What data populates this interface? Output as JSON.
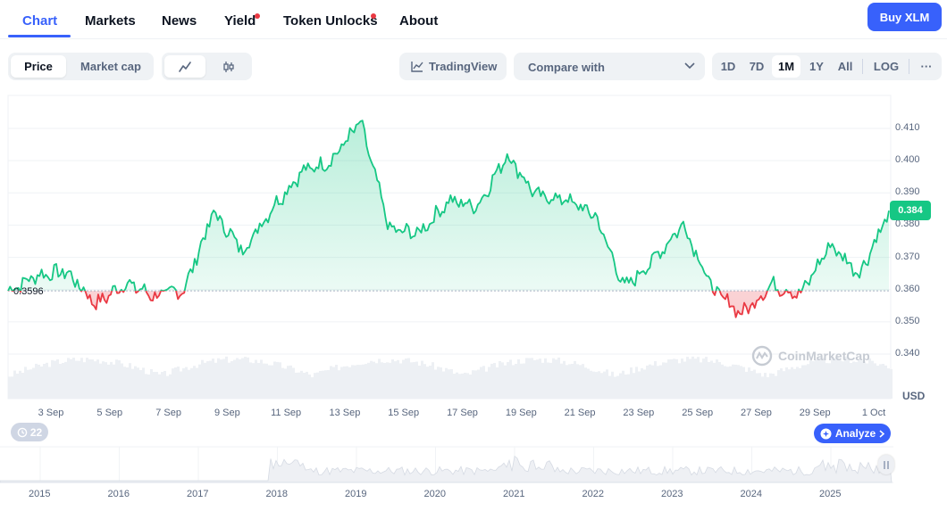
{
  "nav": {
    "tabs": [
      {
        "label": "Chart",
        "active": true
      },
      {
        "label": "Markets"
      },
      {
        "label": "News"
      },
      {
        "label": "Yield",
        "dot": true
      },
      {
        "label": "Token Unlocks",
        "dot": true
      },
      {
        "label": "About"
      }
    ],
    "buy_label": "Buy XLM"
  },
  "toolbar": {
    "metric_tabs": [
      "Price",
      "Market cap"
    ],
    "selected_metric": "Price",
    "chart_type_icons": [
      "line-chart-icon",
      "candlestick-icon"
    ],
    "tradingview_label": "TradingView",
    "compare_label": "Compare with",
    "ranges": [
      "1D",
      "7D",
      "1M",
      "1Y",
      "All"
    ],
    "selected_range": "1M",
    "log_label": "LOG",
    "more_label": "···"
  },
  "chart": {
    "current_price": "0.384",
    "open_price_label": "0.3596",
    "currency": "USD",
    "watermark": "CoinMarketCap",
    "indicator_count": "22",
    "analyze_label": "Analyze",
    "y_ticks": [
      "0.410",
      "0.400",
      "0.390",
      "0.380",
      "0.370",
      "0.360",
      "0.350",
      "0.340"
    ],
    "x_ticks": [
      "3 Sep",
      "5 Sep",
      "7 Sep",
      "9 Sep",
      "11 Sep",
      "13 Sep",
      "15 Sep",
      "17 Sep",
      "19 Sep",
      "21 Sep",
      "23 Sep",
      "25 Sep",
      "27 Sep",
      "29 Sep",
      "1 Oct"
    ],
    "navigator_years": [
      "2015",
      "2016",
      "2017",
      "2018",
      "2019",
      "2020",
      "2021",
      "2022",
      "2023",
      "2024",
      "2025"
    ],
    "colors": {
      "up": "#16c784",
      "down": "#ea3943",
      "accent": "#3861fb"
    }
  },
  "chart_data": {
    "type": "area",
    "ylabel": "USD",
    "ylim": [
      0.336,
      0.418
    ],
    "baseline": 0.3596,
    "x": [
      "2 Sep",
      "3 Sep",
      "4 Sep",
      "5 Sep",
      "6 Sep",
      "7 Sep",
      "8 Sep",
      "9 Sep",
      "10 Sep",
      "11 Sep",
      "12 Sep",
      "13 Sep",
      "14 Sep",
      "15 Sep",
      "16 Sep",
      "17 Sep",
      "18 Sep",
      "19 Sep",
      "20 Sep",
      "21 Sep",
      "22 Sep",
      "23 Sep",
      "24 Sep",
      "25 Sep",
      "26 Sep",
      "27 Sep",
      "28 Sep",
      "29 Sep",
      "30 Sep",
      "1 Oct",
      "1 Oct"
    ],
    "series": [
      {
        "values": [
          0.3596,
          0.3645,
          0.3655,
          0.3555,
          0.362,
          0.358,
          0.36,
          0.384,
          0.372,
          0.3855,
          0.3965,
          0.4,
          0.412,
          0.3785,
          0.3775,
          0.3875,
          0.386,
          0.402,
          0.389,
          0.388,
          0.383,
          0.3605,
          0.3695,
          0.3805,
          0.36,
          0.3525,
          0.3615,
          0.3585,
          0.374,
          0.365,
          0.384
        ]
      }
    ]
  }
}
